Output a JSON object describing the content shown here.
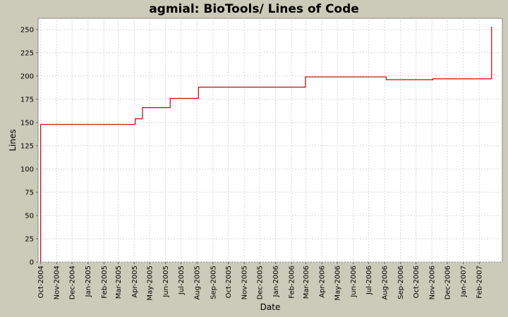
{
  "chart_data": {
    "type": "line",
    "step": true,
    "title": "agmial: BioTools/ Lines of Code",
    "xlabel": "Date",
    "ylabel": "Lines",
    "ylim": [
      0,
      262
    ],
    "xlim": [
      "2004-09-26",
      "2007-03-18"
    ],
    "yticks": [
      0,
      25,
      50,
      75,
      100,
      125,
      150,
      175,
      200,
      225,
      250
    ],
    "xticks": [
      {
        "date": "2004-10-01",
        "label": "Oct-2004"
      },
      {
        "date": "2004-11-01",
        "label": "Nov-2004"
      },
      {
        "date": "2004-12-01",
        "label": "Dec-2004"
      },
      {
        "date": "2005-01-01",
        "label": "Jan-2005"
      },
      {
        "date": "2005-02-01",
        "label": "Feb-2005"
      },
      {
        "date": "2005-03-01",
        "label": "Mar-2005"
      },
      {
        "date": "2005-04-01",
        "label": "Apr-2005"
      },
      {
        "date": "2005-05-01",
        "label": "May-2005"
      },
      {
        "date": "2005-06-01",
        "label": "Jun-2005"
      },
      {
        "date": "2005-07-01",
        "label": "Jul-2005"
      },
      {
        "date": "2005-08-01",
        "label": "Aug-2005"
      },
      {
        "date": "2005-09-01",
        "label": "Sep-2005"
      },
      {
        "date": "2005-10-01",
        "label": "Oct-2005"
      },
      {
        "date": "2005-11-01",
        "label": "Nov-2005"
      },
      {
        "date": "2005-12-01",
        "label": "Dec-2005"
      },
      {
        "date": "2006-01-01",
        "label": "Jan-2006"
      },
      {
        "date": "2006-02-01",
        "label": "Feb-2006"
      },
      {
        "date": "2006-03-01",
        "label": "Mar-2006"
      },
      {
        "date": "2006-04-01",
        "label": "Apr-2006"
      },
      {
        "date": "2006-05-01",
        "label": "May-2006"
      },
      {
        "date": "2006-06-01",
        "label": "Jun-2006"
      },
      {
        "date": "2006-07-01",
        "label": "Jul-2006"
      },
      {
        "date": "2006-08-01",
        "label": "Aug-2006"
      },
      {
        "date": "2006-09-01",
        "label": "Sep-2006"
      },
      {
        "date": "2006-10-01",
        "label": "Oct-2006"
      },
      {
        "date": "2006-11-01",
        "label": "Nov-2006"
      },
      {
        "date": "2006-12-01",
        "label": "Dec-2006"
      },
      {
        "date": "2007-01-01",
        "label": "Jan-2007"
      },
      {
        "date": "2007-02-01",
        "label": "Feb-2007"
      }
    ],
    "grid": true,
    "series": [
      {
        "color": "#cc0000",
        "points": [
          {
            "x": "2004-10-01",
            "y": 0
          },
          {
            "x": "2004-10-01",
            "y": 148
          },
          {
            "x": "2005-04-03",
            "y": 154
          },
          {
            "x": "2005-04-17",
            "y": 166
          },
          {
            "x": "2005-06-10",
            "y": 176
          },
          {
            "x": "2005-08-04",
            "y": 188
          },
          {
            "x": "2006-02-28",
            "y": 199
          },
          {
            "x": "2006-08-04",
            "y": 196
          },
          {
            "x": "2006-11-03",
            "y": 197
          },
          {
            "x": "2007-02-25",
            "y": 253
          }
        ]
      }
    ],
    "colors": {
      "background": "#cccab8",
      "plot_background": "#ffffff",
      "gridline": "#d8d8d8",
      "line": "#cc0000"
    }
  }
}
